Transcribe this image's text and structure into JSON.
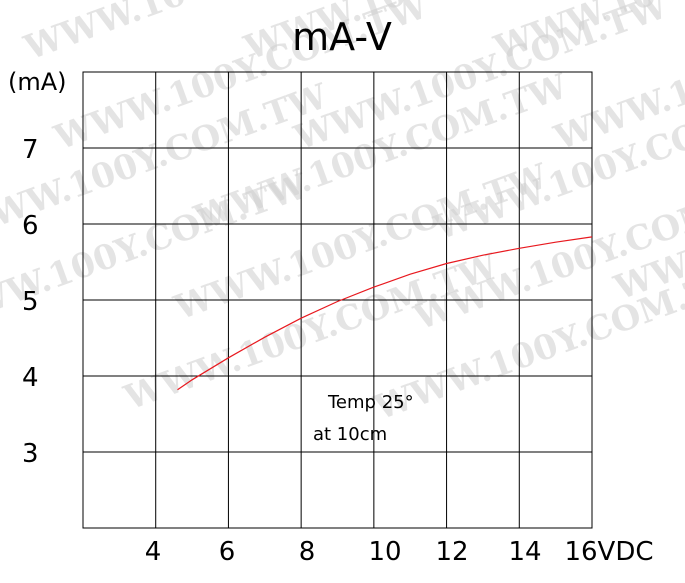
{
  "chart_data": {
    "type": "line",
    "title": "mA-V",
    "ylabel": "(mA)",
    "xlabel": "",
    "x_ticks": [
      "4",
      "6",
      "8",
      "10",
      "12",
      "14",
      "16VDC"
    ],
    "y_ticks": [
      7,
      6,
      5,
      4,
      3
    ],
    "xlim": [
      2,
      16
    ],
    "ylim": [
      2,
      8
    ],
    "grid": true,
    "annotation": [
      "Temp 25°",
      "at 10cm"
    ],
    "series": [
      {
        "color": "#e8191f",
        "x": [
          4.6,
          5,
          6,
          7,
          8,
          9,
          10,
          11,
          12,
          13,
          14,
          15,
          16
        ],
        "y": [
          3.82,
          3.95,
          4.24,
          4.51,
          4.76,
          4.98,
          5.17,
          5.34,
          5.48,
          5.59,
          5.68,
          5.76,
          5.83
        ]
      }
    ]
  },
  "watermark": "WWW.100Y.COM.TW"
}
